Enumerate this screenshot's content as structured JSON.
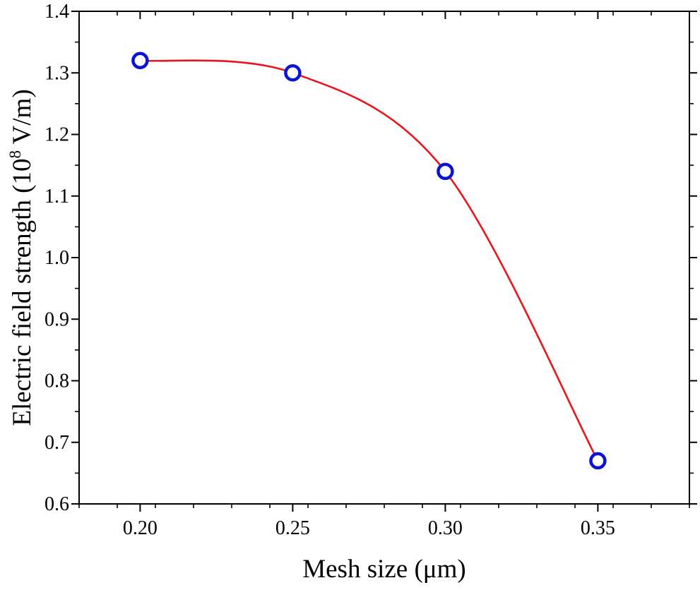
{
  "chart_data": {
    "type": "line",
    "title": "",
    "xlabel": "Mesh size (μm)",
    "ylabel": {
      "prefix": "Electric field strength (10",
      "superscript": "8",
      "suffix": " V/m)"
    },
    "xlim": [
      0.18,
      0.38
    ],
    "ylim": [
      0.6,
      1.4
    ],
    "xticks": [
      "0.20",
      "0.25",
      "0.30",
      "0.35"
    ],
    "yticks": [
      "0.6",
      "0.7",
      "0.8",
      "0.9",
      "1.0",
      "1.1",
      "1.2",
      "1.3",
      "1.4"
    ],
    "grid": false,
    "legend": "none",
    "series": [
      {
        "x": [
          0.2,
          0.25,
          0.3,
          0.35
        ],
        "y": [
          1.32,
          1.3,
          1.14,
          0.67
        ],
        "line": "smooth",
        "line_color": "#e8161b",
        "marker": "open-circle",
        "marker_color": "#0a14d6"
      }
    ]
  }
}
